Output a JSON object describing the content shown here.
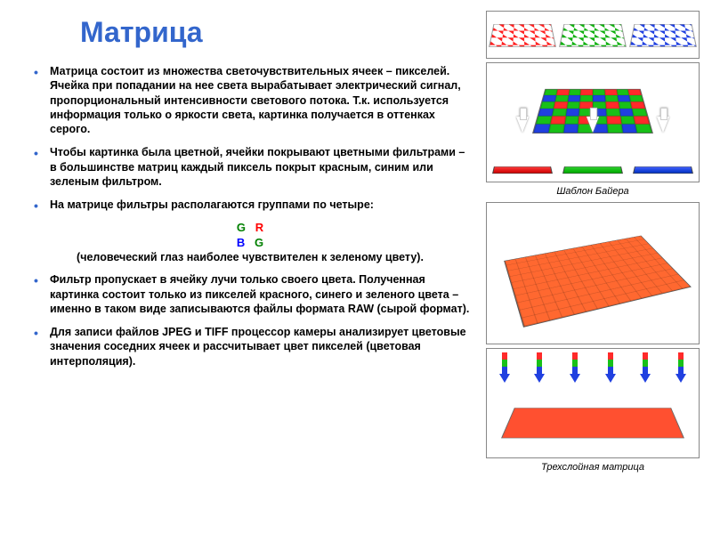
{
  "title": "Матрица",
  "bullets": {
    "b1": "Матрица состоит из множества светочувствительных ячеек – пикселей. Ячейка при попадании на нее света вырабатывает электрический сигнал, пропорциональный интенсивности светового потока. Т.к. используется информация только о яркости света, картинка получается в оттенках серого.",
    "b2": "Чтобы картинка была цветной, ячейки покрывают цветными фильтрами – в большинстве матриц каждый пиксель покрыт красным, синим или зеленым фильтром.",
    "b3": "На матрице фильтры располагаются группами по четыре:",
    "paren": "(человеческий глаз наиболее чувствителен к зеленому цвету).",
    "b4": "Фильтр пропускает в ячейку лучи только своего цвета. Полученная картинка состоит только из пикселей красного, синего и зеленого цвета – именно в таком виде записываются файлы формата RAW (сырой формат).",
    "b5": "Для записи файлов JPEG и TIFF процессор камеры анализирует цветовые значения соседних ячеек и рассчитывает цвет пикселей (цветовая интерполяция)."
  },
  "grgb": {
    "g": "G",
    "r": "R",
    "b": "B"
  },
  "captions": {
    "bayer": "Шаблон Байера",
    "foveon": "Трехслойная матрица"
  },
  "colors": {
    "title": "#3366cc",
    "green": "#008000",
    "red": "#ff0000",
    "blue": "#0000ff",
    "border": "#888888"
  }
}
